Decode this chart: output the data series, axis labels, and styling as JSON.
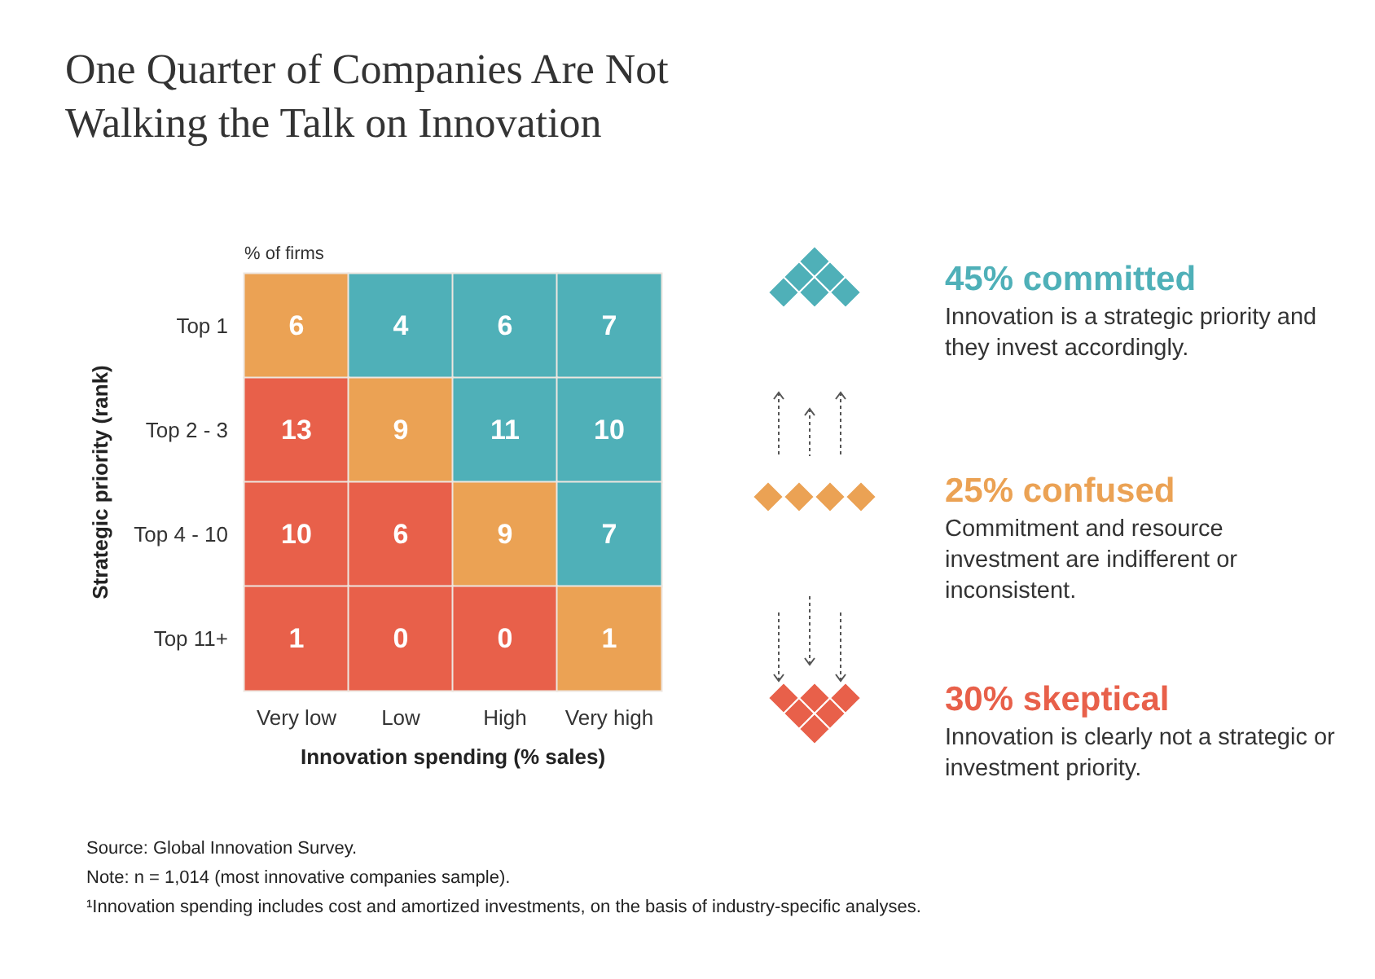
{
  "chart_data": [
    {
      "type": "heatmap",
      "title": "One Quarter of Companies Are Not Walking the Talk on Innovation",
      "clabel": "% of firms",
      "xlabel": "Innovation spending (% sales)",
      "ylabel": "Strategic priority (rank)",
      "categories": [
        "Very low",
        "Low",
        "High",
        "Very high"
      ],
      "y_categories": [
        "Top 1",
        "Top 2 - 3",
        "Top 4 - 10",
        "Top 11+"
      ],
      "cells": [
        [
          6,
          4,
          6,
          7
        ],
        [
          13,
          9,
          11,
          10
        ],
        [
          10,
          6,
          9,
          7
        ],
        [
          1,
          0,
          0,
          1
        ]
      ],
      "colors": [
        [
          "#eba254",
          "#4fb0b8",
          "#4fb0b8",
          "#4fb0b8"
        ],
        [
          "#e8604a",
          "#eba254",
          "#4fb0b8",
          "#4fb0b8"
        ],
        [
          "#e8604a",
          "#e8604a",
          "#eba254",
          "#4fb0b8"
        ],
        [
          "#e8604a",
          "#e8604a",
          "#e8604a",
          "#eba254"
        ]
      ],
      "data_labels": true,
      "annotations": [
        "Source: Global Innovation Survey.",
        "Note: n = 1,014 (most innovative companies sample).",
        "¹Innovation spending includes cost and amortized investments, on the basis of industry-specific analyses."
      ]
    },
    {
      "type": "other",
      "categories": [
        "45% committed",
        "25% confused",
        "30% skeptical"
      ],
      "colors": [
        "#4fb0b8",
        "#eba254",
        "#e8604a"
      ],
      "annotations": [
        "Innovation is a strategic priority and they invest accordingly.",
        "Commitment and resource investment are indifferent or inconsistent.",
        "Innovation is clearly not a strategic or investment priority."
      ]
    }
  ]
}
